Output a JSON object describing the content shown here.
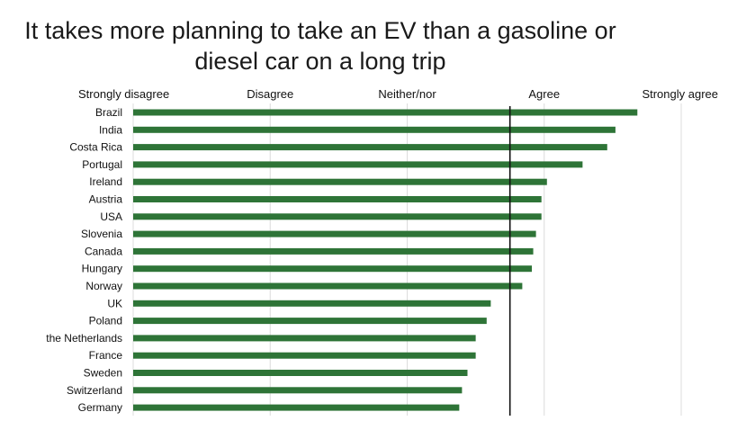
{
  "chart_data": {
    "type": "bar",
    "orientation": "horizontal",
    "title_lines": [
      "It takes more planning to take an EV than a gasoline or",
      "diesel car on a long trip"
    ],
    "scale_labels": [
      "Strongly disagree",
      "Disagree",
      "Neither/nor",
      "Agree",
      "Strongly agree"
    ],
    "scale_range": [
      1,
      5
    ],
    "reference_line": 3.75,
    "grid": true,
    "categories": [
      "Brazil",
      "India",
      "Costa Rica",
      "Portugal",
      "Ireland",
      "Austria",
      "USA",
      "Slovenia",
      "Canada",
      "Hungary",
      "Norway",
      "UK",
      "Poland",
      "the Netherlands",
      "France",
      "Sweden",
      "Switzerland",
      "Germany"
    ],
    "values": [
      4.68,
      4.52,
      4.46,
      4.28,
      4.02,
      3.98,
      3.98,
      3.94,
      3.92,
      3.91,
      3.84,
      3.61,
      3.58,
      3.5,
      3.5,
      3.44,
      3.4,
      3.38
    ],
    "bar_color": "#2e7437",
    "reference_line_color": "#111111",
    "grid_color": "#dcdcdc"
  }
}
